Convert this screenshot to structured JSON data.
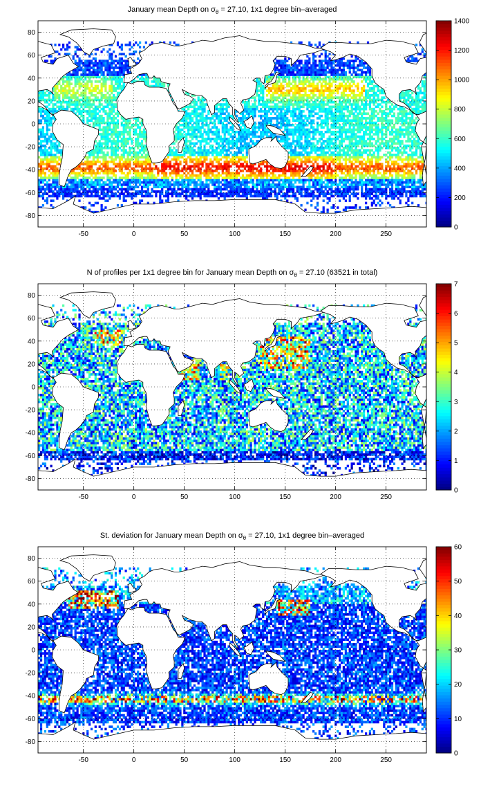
{
  "panels": [
    {
      "title_prefix": "January mean Depth on σ",
      "title_sub": "θ",
      "title_suffix": " = 27.10, 1x1 degree bin–averaged",
      "colorbar": {
        "min": 0,
        "max": 1400,
        "ticks": [
          0,
          200,
          400,
          600,
          800,
          1000,
          1200,
          1400
        ]
      }
    },
    {
      "title_prefix": "N of profiles per 1x1 degree bin for January mean Depth on σ",
      "title_sub": "θ",
      "title_suffix": " = 27.10 (63521 in total)",
      "colorbar": {
        "min": 0,
        "max": 7,
        "ticks": [
          0,
          1,
          2,
          3,
          4,
          5,
          6,
          7
        ]
      }
    },
    {
      "title_prefix": "St. deviation for January mean Depth on σ",
      "title_sub": "θ",
      "title_suffix": " = 27.10, 1x1 degree bin–averaged",
      "colorbar": {
        "min": 0,
        "max": 60,
        "ticks": [
          0,
          10,
          20,
          30,
          40,
          50,
          60
        ]
      }
    }
  ],
  "axes": {
    "xlim": [
      -95,
      290
    ],
    "ylim": [
      -90,
      90
    ],
    "xticks": [
      -50,
      0,
      50,
      100,
      150,
      200,
      250
    ],
    "yticks": [
      -80,
      -60,
      -40,
      -20,
      0,
      20,
      40,
      60,
      80
    ]
  },
  "colormap": "jet",
  "grid": "dotted",
  "land_color": "#ffffff",
  "coast_color": "#000000"
}
